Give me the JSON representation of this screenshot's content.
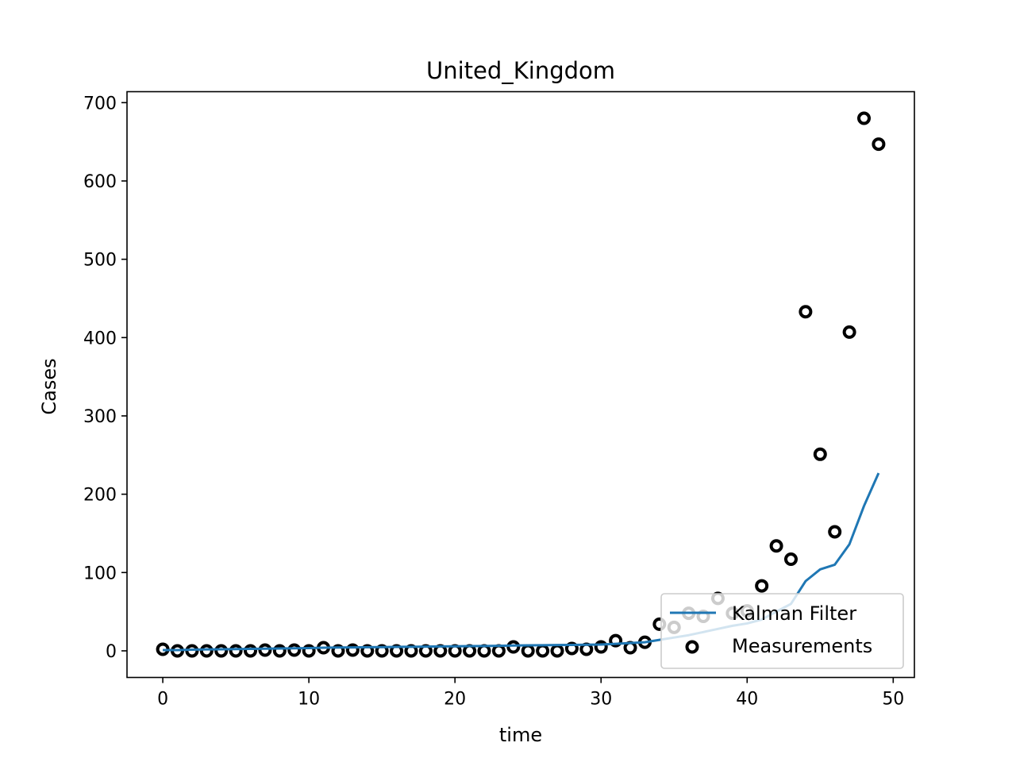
{
  "chart_data": {
    "type": "line",
    "title": "United_Kingdom",
    "xlabel": "time",
    "ylabel": "Cases",
    "xlim": [
      -2.45,
      51.45
    ],
    "ylim": [
      -34,
      714
    ],
    "xticks": [
      0,
      10,
      20,
      30,
      40,
      50
    ],
    "yticks": [
      0,
      100,
      200,
      300,
      400,
      500,
      600,
      700
    ],
    "grid": false,
    "legend_position": "lower-right",
    "series": [
      {
        "name": "Kalman Filter",
        "kind": "line",
        "color": "#1f77b4",
        "x": [
          0,
          1,
          2,
          3,
          4,
          5,
          6,
          7,
          8,
          9,
          10,
          11,
          12,
          13,
          14,
          15,
          16,
          17,
          18,
          19,
          20,
          21,
          22,
          23,
          24,
          25,
          26,
          27,
          28,
          29,
          30,
          31,
          32,
          33,
          34,
          35,
          36,
          37,
          38,
          39,
          40,
          41,
          42,
          43,
          44,
          45,
          46,
          47,
          48,
          49
        ],
        "y": [
          1,
          1,
          1.5,
          1.8,
          2,
          2.2,
          2.5,
          2.8,
          3,
          3.2,
          3.5,
          4,
          4.2,
          4.4,
          4.6,
          4.8,
          5,
          5.2,
          5.4,
          5.6,
          5.8,
          6,
          6.2,
          6.4,
          6.8,
          7,
          7.2,
          7.4,
          7.6,
          7.8,
          8,
          9,
          10,
          11,
          14,
          17,
          20,
          24,
          28,
          32,
          35,
          40,
          50,
          60,
          89,
          104,
          110,
          136,
          185,
          227
        ]
      },
      {
        "name": "Measurements",
        "kind": "scatter",
        "marker": "open-circle",
        "color": "#000000",
        "x": [
          0,
          1,
          2,
          3,
          4,
          5,
          6,
          7,
          8,
          9,
          10,
          11,
          12,
          13,
          14,
          15,
          16,
          17,
          18,
          19,
          20,
          21,
          22,
          23,
          24,
          25,
          26,
          27,
          28,
          29,
          30,
          31,
          32,
          33,
          34,
          35,
          36,
          37,
          38,
          39,
          40,
          41,
          42,
          43,
          44,
          45,
          46,
          47,
          48,
          49
        ],
        "y": [
          2,
          0,
          0,
          0,
          0,
          0,
          0,
          1,
          0,
          1,
          0,
          4,
          0,
          1,
          0,
          0,
          0,
          0,
          0,
          0,
          0,
          0,
          0,
          0,
          5,
          0,
          0,
          0,
          3,
          2,
          5,
          13,
          4,
          11,
          34,
          30,
          48,
          44,
          67,
          48,
          51,
          83,
          134,
          117,
          433,
          251,
          152,
          407,
          680,
          647
        ]
      }
    ]
  }
}
